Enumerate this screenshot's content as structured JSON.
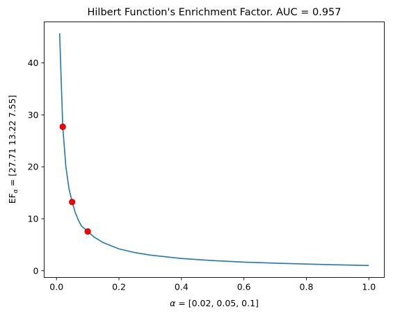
{
  "chart_data": {
    "type": "line",
    "title": "Hilbert Function's Enrichment Factor. AUC = 0.957",
    "xlabel": {
      "symbol": "α",
      "rest": " = [0.02, 0.05, 0.1]"
    },
    "ylabel": {
      "prefix": "EF",
      "subscript": "α",
      "rest": " = [27.71 13.22  7.55]"
    },
    "xlim": [
      -0.0395,
      1.0495
    ],
    "ylim": [
      -1.3,
      47.9
    ],
    "x_ticks": [
      0.0,
      0.2,
      0.4,
      0.6,
      0.8,
      1.0
    ],
    "x_tick_labels": [
      "0.0",
      "0.2",
      "0.4",
      "0.6",
      "0.8",
      "1.0"
    ],
    "y_ticks": [
      0,
      10,
      20,
      30,
      40
    ],
    "y_tick_labels": [
      "0",
      "10",
      "20",
      "30",
      "40"
    ],
    "grid": false,
    "series": [
      {
        "color": "#1f77b4",
        "x": [
          0.01,
          0.02,
          0.03,
          0.04,
          0.05,
          0.06,
          0.07,
          0.08,
          0.1,
          0.12,
          0.15,
          0.2,
          0.25,
          0.3,
          0.4,
          0.5,
          0.6,
          0.7,
          0.8,
          0.9,
          1.0
        ],
        "y": [
          45.7,
          27.71,
          20.0,
          15.8,
          13.22,
          11.2,
          9.75,
          8.6,
          7.55,
          6.5,
          5.4,
          4.2,
          3.5,
          3.0,
          2.35,
          1.95,
          1.65,
          1.45,
          1.28,
          1.13,
          1.0
        ]
      }
    ],
    "markers": {
      "color": "#ff0000",
      "edge": "#b00000",
      "x": [
        0.02,
        0.05,
        0.1
      ],
      "y": [
        27.71,
        13.22,
        7.55
      ]
    }
  }
}
